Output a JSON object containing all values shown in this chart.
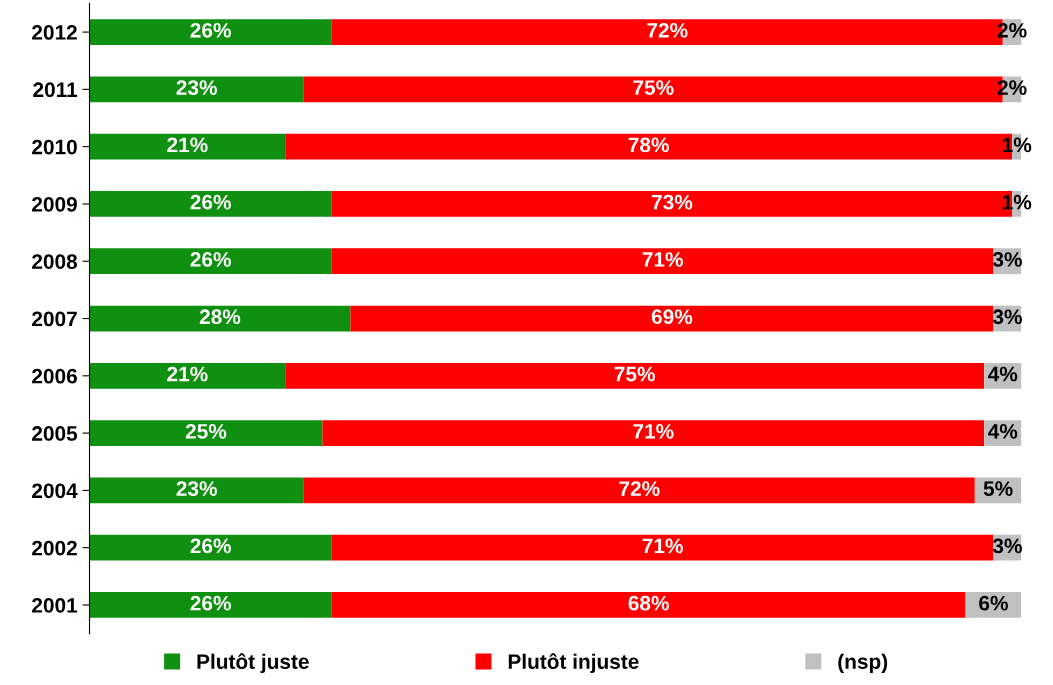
{
  "chart_data": {
    "type": "bar",
    "orientation": "horizontal",
    "stacked": true,
    "legend": "bottom",
    "grid": false,
    "categories": [
      "2012",
      "2011",
      "2010",
      "2009",
      "2008",
      "2007",
      "2006",
      "2005",
      "2004",
      "2002",
      "2001"
    ],
    "series": [
      {
        "name": "Plutôt juste",
        "color": "#109010",
        "values": [
          26,
          23,
          21,
          26,
          26,
          28,
          21,
          25,
          23,
          26,
          26
        ],
        "value_labels": [
          "26%",
          "23%",
          "21%",
          "26%",
          "26%",
          "28%",
          "21%",
          "25%",
          "23%",
          "26%",
          "26%"
        ]
      },
      {
        "name": "Plutôt injuste",
        "color": "#ff0000",
        "values": [
          72,
          75,
          78,
          73,
          71,
          69,
          75,
          71,
          72,
          71,
          68
        ],
        "value_labels": [
          "72%",
          "75%",
          "78%",
          "73%",
          "71%",
          "69%",
          "75%",
          "71%",
          "72%",
          "71%",
          "68%"
        ]
      },
      {
        "name": "(nsp)",
        "color": "#c0c0c0",
        "values": [
          2,
          2,
          1,
          1,
          3,
          3,
          4,
          4,
          5,
          3,
          6
        ],
        "value_labels": [
          "2%",
          "2%",
          "1%",
          "1%",
          "3%",
          "3%",
          "4%",
          "4%",
          "5%",
          "3%",
          "6%"
        ]
      }
    ]
  }
}
